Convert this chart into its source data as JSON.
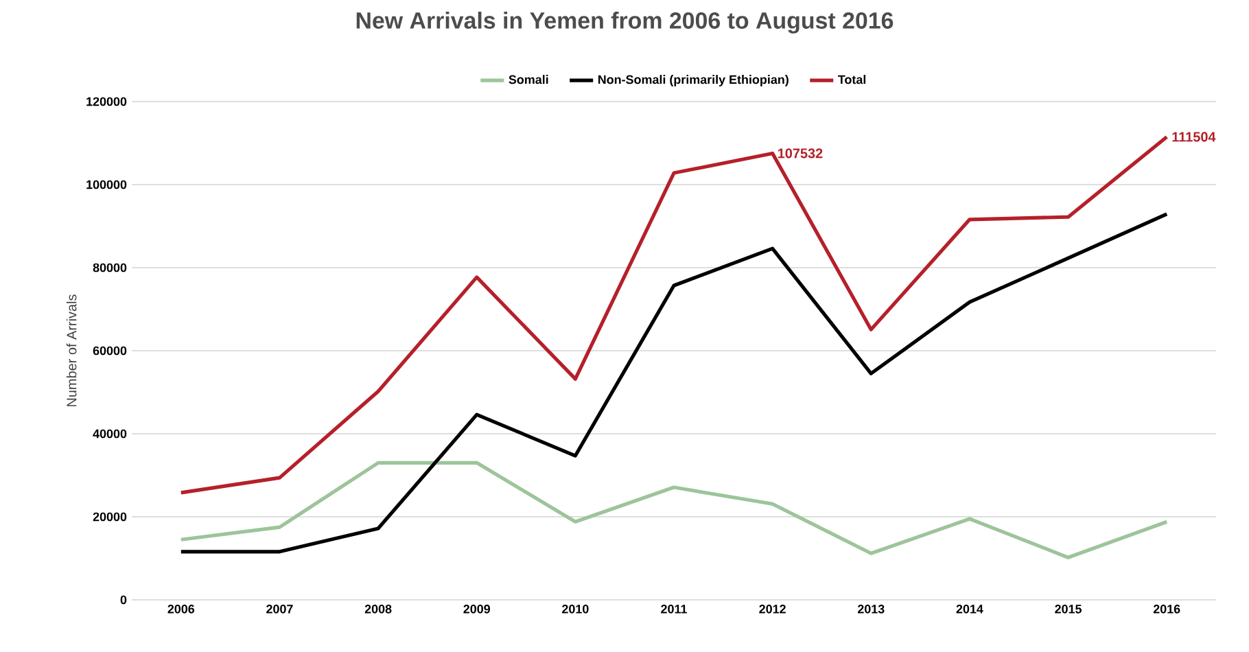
{
  "chart_data": {
    "type": "line",
    "title": "New Arrivals in Yemen from 2006 to August 2016",
    "ylabel": "Number of Arrivals",
    "categories": [
      "2006",
      "2007",
      "2008",
      "2009",
      "2010",
      "2011",
      "2012",
      "2013",
      "2014",
      "2015",
      "2016"
    ],
    "series": [
      {
        "name": "Somali",
        "color": "#9dc49a",
        "values": [
          14500,
          17500,
          33000,
          33000,
          18800,
          27100,
          23100,
          11200,
          19500,
          10200,
          18800
        ]
      },
      {
        "name": "Non-Somali (primarily Ethiopian)",
        "color": "#000000",
        "values": [
          11600,
          11600,
          17200,
          44600,
          34700,
          75700,
          84600,
          54500,
          71700,
          82300,
          92900
        ]
      },
      {
        "name": "Total",
        "color": "#b5202a",
        "values": [
          25800,
          29400,
          50200,
          77700,
          53200,
          102800,
          107532,
          65100,
          91600,
          92200,
          111504
        ],
        "value_labels": [
          null,
          null,
          null,
          null,
          null,
          null,
          "107532",
          null,
          null,
          null,
          "111504"
        ]
      }
    ],
    "ylim": [
      0,
      120000
    ],
    "yticks": [
      0,
      20000,
      40000,
      60000,
      80000,
      100000,
      120000
    ],
    "grid": "y",
    "legend": "top",
    "marker": "none",
    "line_style": "solid"
  }
}
